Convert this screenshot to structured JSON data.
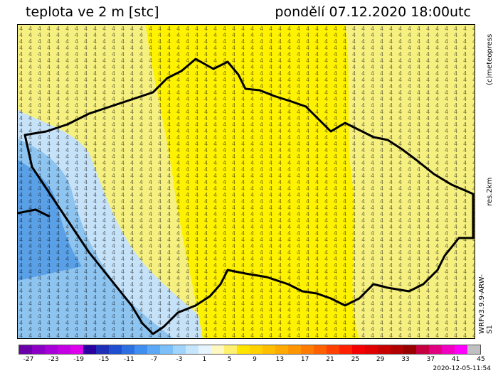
{
  "header": {
    "title": "teplota ve 2 m [stc]",
    "datetime": "pondělí 07.12.2020 18:00utc"
  },
  "side_labels": {
    "credit": "(c)meteopress",
    "resolution": "res.2km",
    "model": "WRFv3.9.9-ARW-S1"
  },
  "scale": {
    "ticks": [
      "-27",
      "-23",
      "-19",
      "-15",
      "-11",
      "-7",
      "-3",
      "1",
      "5",
      "9",
      "13",
      "17",
      "21",
      "25",
      "29",
      "33",
      "37",
      "41",
      "45"
    ],
    "colors": [
      "#6a00a8",
      "#8b00c4",
      "#a700d8",
      "#c300e3",
      "#de00ec",
      "#2a00a0",
      "#1f2fb8",
      "#1f4fd0",
      "#2b6fe0",
      "#3f8ff0",
      "#5aa8f6",
      "#7cc0fa",
      "#a0d4fc",
      "#c6e6fe",
      "#e6f4ff",
      "#fff8c0",
      "#fff070",
      "#ffe400",
      "#ffd200",
      "#ffbe00",
      "#ffaa00",
      "#ff9600",
      "#ff7c00",
      "#ff6000",
      "#ff4000",
      "#ff2000",
      "#f40000",
      "#e00000",
      "#c80000",
      "#b00000",
      "#980000",
      "#c40040",
      "#e00080",
      "#f000c0",
      "#ff00ff",
      "#c0c0c0"
    ]
  },
  "footer": {
    "stamp": "2020-12-05-11:54"
  }
}
